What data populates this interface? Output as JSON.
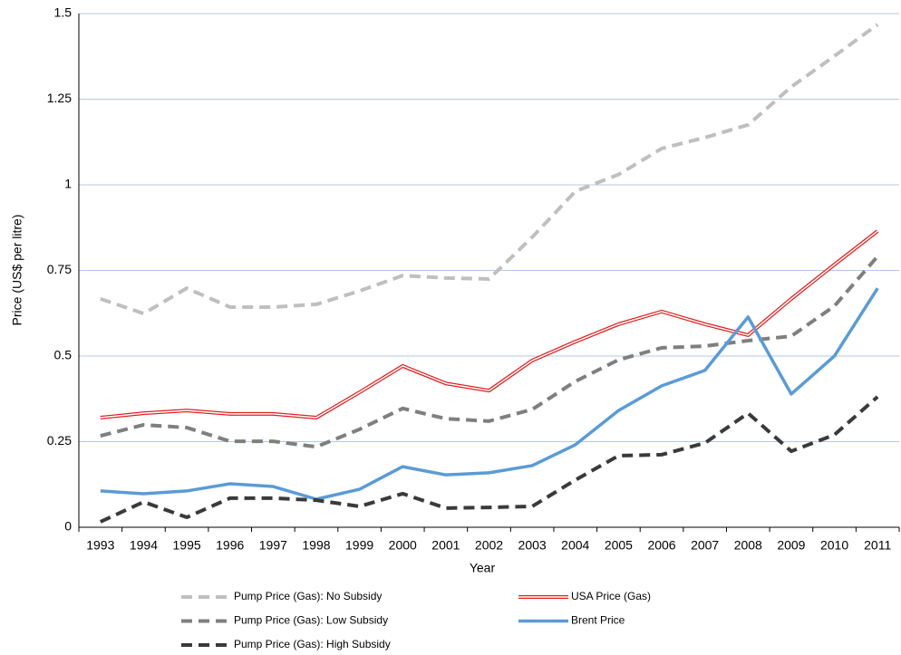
{
  "chart_data": {
    "type": "line",
    "x_label": "Year",
    "y_label": "Price (US$ per litre)",
    "categories": [
      "1993",
      "1994",
      "1995",
      "1996",
      "1997",
      "1998",
      "1999",
      "2000",
      "2001",
      "2002",
      "2003",
      "2004",
      "2005",
      "2006",
      "2007",
      "2008",
      "2009",
      "2010",
      "2011"
    ],
    "ylim": [
      0,
      1.5
    ],
    "yticks": [
      0,
      0.25,
      0.5,
      0.75,
      1,
      1.25,
      1.5
    ],
    "grid": true,
    "legend": "bottom",
    "series": [
      {
        "name": "Pump Price (Gas): No Subsidy",
        "color": "#bfbfbf",
        "style": "dashed",
        "values": [
          0.667,
          0.624,
          0.698,
          0.643,
          0.643,
          0.651,
          0.69,
          0.735,
          0.728,
          0.725,
          0.847,
          0.981,
          1.03,
          1.106,
          1.138,
          1.175,
          1.286,
          1.376,
          1.468
        ]
      },
      {
        "name": "USA Price (Gas)",
        "color": "#e02020",
        "style": "double",
        "values": [
          0.32,
          0.333,
          0.341,
          0.331,
          0.331,
          0.32,
          0.394,
          0.471,
          0.42,
          0.399,
          0.487,
          0.542,
          0.593,
          0.63,
          0.593,
          0.561,
          0.667,
          0.767,
          0.865
        ]
      },
      {
        "name": "Pump Price (Gas): Low Subsidy",
        "color": "#7f7f7f",
        "style": "dashed",
        "values": [
          0.267,
          0.299,
          0.291,
          0.251,
          0.251,
          0.235,
          0.286,
          0.347,
          0.317,
          0.31,
          0.344,
          0.426,
          0.489,
          0.524,
          0.529,
          0.545,
          0.558,
          0.646,
          0.791
        ]
      },
      {
        "name": "Brent Price",
        "color": "#5b9bd5",
        "style": "solid",
        "values": [
          0.106,
          0.098,
          0.106,
          0.127,
          0.119,
          0.082,
          0.111,
          0.177,
          0.153,
          0.159,
          0.18,
          0.241,
          0.341,
          0.413,
          0.458,
          0.614,
          0.389,
          0.5,
          0.698
        ]
      },
      {
        "name": "Pump Price (Gas): High Subsidy",
        "color": "#3a3a3a",
        "style": "dashed",
        "values": [
          0.016,
          0.074,
          0.029,
          0.085,
          0.085,
          0.079,
          0.061,
          0.098,
          0.056,
          0.058,
          0.061,
          0.138,
          0.209,
          0.212,
          0.246,
          0.333,
          0.222,
          0.27,
          0.381
        ]
      }
    ]
  }
}
